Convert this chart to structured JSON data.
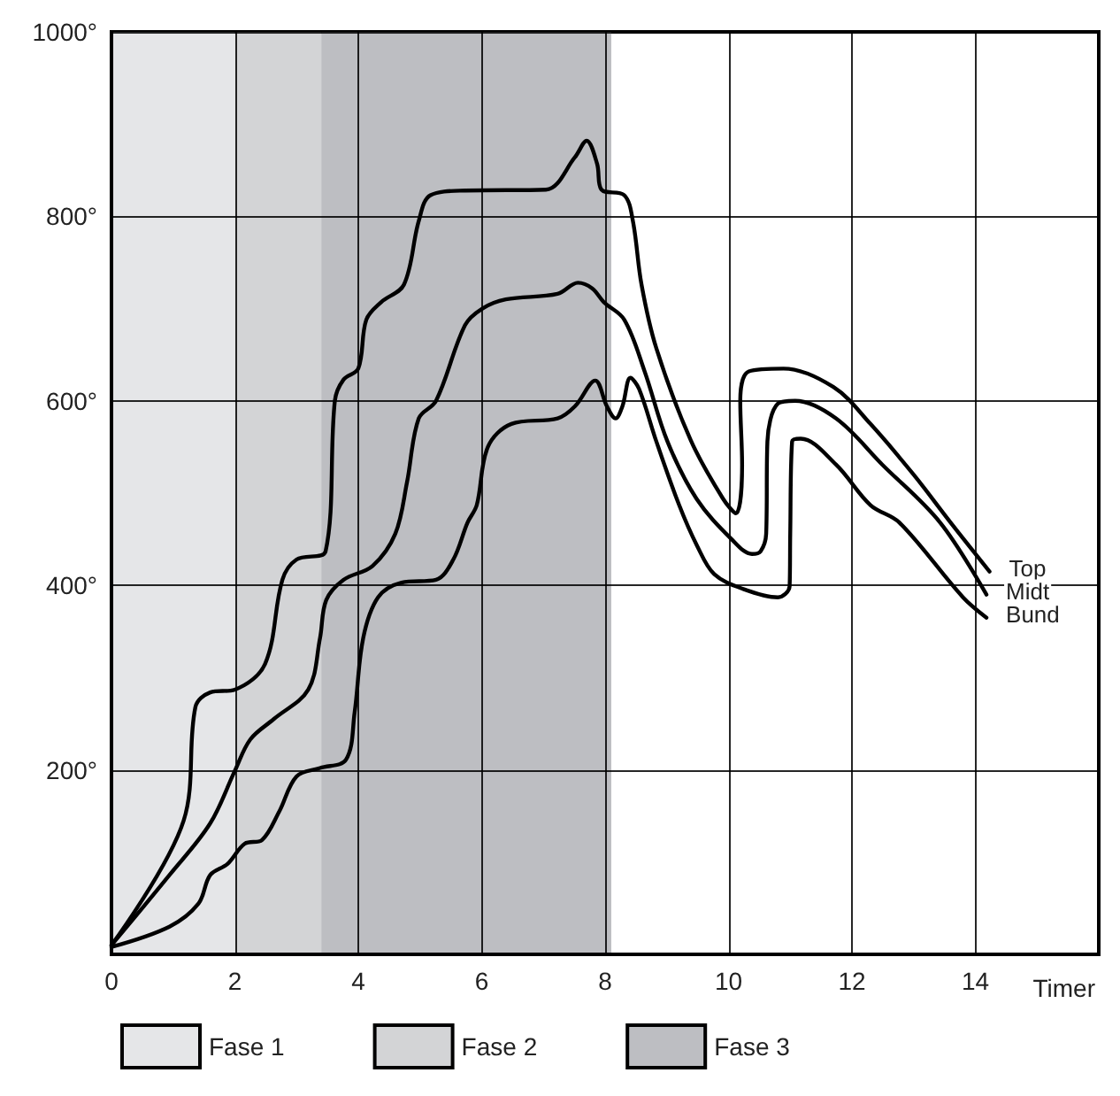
{
  "chart_data": {
    "type": "line",
    "xlabel": "Timer",
    "xlim": [
      0,
      16
    ],
    "xticks": [
      0,
      2,
      4,
      6,
      8,
      10,
      12,
      14
    ],
    "ylim": [
      0,
      1000
    ],
    "yticks": [
      {
        "value": 200,
        "label": "200°"
      },
      {
        "value": 400,
        "label": "400°"
      },
      {
        "value": 600,
        "label": "600°"
      },
      {
        "value": 800,
        "label": "800°"
      },
      {
        "value": 1000,
        "label": "1000°"
      }
    ],
    "grid": true,
    "legend": "bottom left",
    "marker": "none",
    "line_style": "solid",
    "bands": [
      {
        "axis": "x",
        "from": 0,
        "to": 2,
        "label": "Fase 1",
        "color": "#e5e6e8"
      },
      {
        "axis": "x",
        "from": 2,
        "to": 3.4,
        "label": "Fase 2",
        "color": "#d3d4d6"
      },
      {
        "axis": "x",
        "from": 3.4,
        "to": 8.1,
        "label": "Fase 3",
        "color": "#bdbec2"
      }
    ],
    "series": [
      {
        "name": "Top",
        "color": "#000000",
        "x": [
          0,
          1.17,
          1.36,
          1.6,
          2,
          2.49,
          2.77,
          3,
          3.47,
          3.62,
          3.76,
          4,
          4.13,
          4.37,
          4.74,
          4.98,
          5.17,
          5.73,
          7.04,
          7.51,
          7.7,
          7.87,
          7.94,
          8.31,
          8.45,
          8.59,
          8.83,
          9.39,
          9.91,
          10.12,
          10.22,
          10.19,
          10.33,
          10.89,
          11.7,
          12.3,
          13,
          13.6,
          14.23
        ],
        "values": [
          10,
          145,
          268,
          284,
          287,
          315,
          406,
          428,
          437,
          600,
          623,
          635,
          688,
          707,
          726,
          795,
          823,
          828,
          829,
          864,
          882,
          857,
          829,
          823,
          795,
          726,
          657,
          557,
          494,
          478,
          531,
          600,
          632,
          635,
          615,
          575,
          520,
          468,
          415
        ]
      },
      {
        "name": "Midt",
        "color": "#000000",
        "x": [
          0,
          0.94,
          1.6,
          2,
          2.25,
          2.63,
          3.19,
          3.38,
          3.48,
          3.76,
          4.23,
          4.6,
          4.79,
          4.98,
          5.26,
          5.73,
          6.01,
          6.39,
          7.23,
          7.56,
          7.79,
          7.98,
          8.31,
          8.64,
          9.01,
          9.48,
          10.05,
          10.38,
          10.52,
          10.61,
          10.63,
          10.8,
          11.08,
          11.74,
          12.49,
          13.43,
          14.18
        ],
        "values": [
          10,
          86,
          142,
          199,
          233,
          255,
          287,
          343,
          384,
          406,
          421,
          456,
          512,
          581,
          600,
          682,
          700,
          710,
          716,
          728,
          722,
          707,
          688,
          632,
          556,
          494,
          450,
          434,
          437,
          456,
          556,
          597,
          600,
          581,
          531,
          468,
          390
        ]
      },
      {
        "name": "Bund",
        "color": "#000000",
        "x": [
          0,
          0.94,
          1.41,
          1.6,
          1.88,
          2.16,
          2.44,
          2.72,
          3,
          3.38,
          3.8,
          3.94,
          4.08,
          4.32,
          4.7,
          5.26,
          5.54,
          5.77,
          5.92,
          6.1,
          6.48,
          7.23,
          7.51,
          7.84,
          8.03,
          8.17,
          8.28,
          8.41,
          8.55,
          8.83,
          9.2,
          9.49,
          9.77,
          10.24,
          10.8,
          10.99,
          11,
          11.03,
          11.17,
          11.74,
          12.3,
          12.77,
          13.8,
          14.18
        ],
        "values": [
          8,
          30,
          55,
          86,
          98,
          120,
          124,
          155,
          193,
          202,
          211,
          262,
          343,
          387,
          403,
          406,
          428,
          468,
          487,
          550,
          575,
          581,
          594,
          622,
          594,
          581,
          594,
          625,
          613,
          556,
          487,
          443,
          412,
          396,
          387,
          399,
          456,
          556,
          559,
          531,
          487,
          468,
          387,
          365
        ]
      }
    ]
  }
}
